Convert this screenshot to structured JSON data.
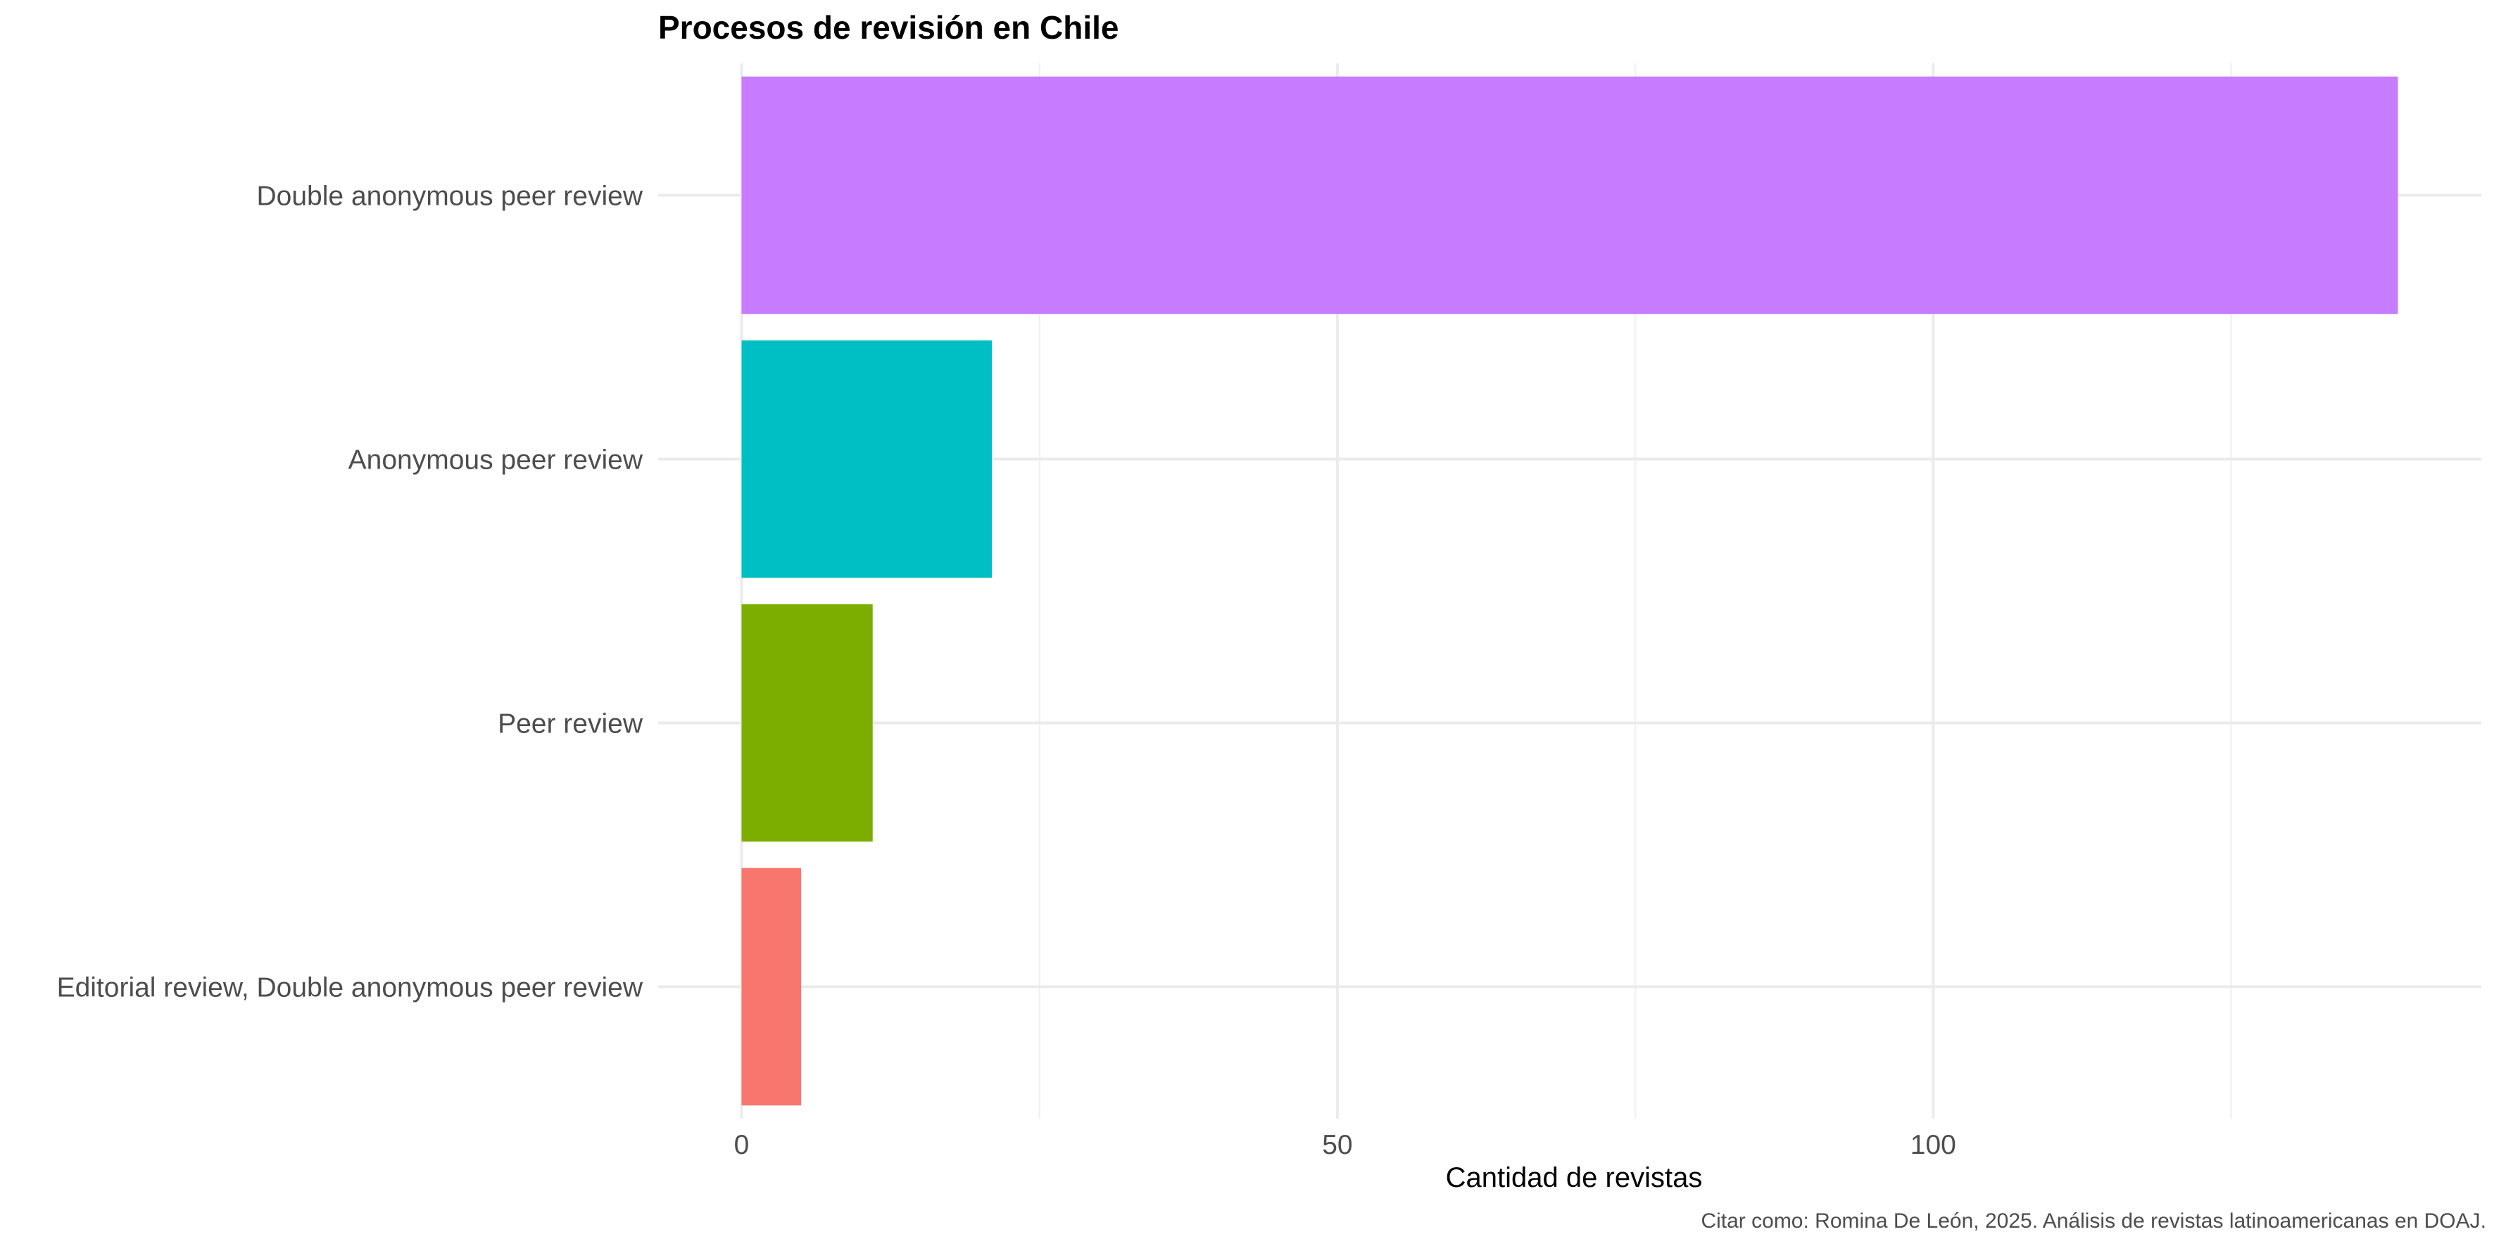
{
  "chart_data": {
    "type": "bar",
    "orientation": "horizontal",
    "title": "Procesos de revisión en Chile",
    "xlabel": "Cantidad de revistas",
    "ylabel": "",
    "caption": "Citar como: Romina De León, 2025. Análisis de revistas latinoamericanas en DOAJ.",
    "categories": [
      "Editorial review, Double anonymous peer review",
      "Peer review",
      "Anonymous peer review",
      "Double anonymous peer review"
    ],
    "values": [
      5,
      11,
      21,
      139
    ],
    "colors": [
      "#F8766D",
      "#7CAE00",
      "#00BFC4",
      "#C77CFF"
    ],
    "xlim": [
      -7,
      146
    ],
    "x_ticks": [
      0,
      50,
      100
    ],
    "x_tick_labels": [
      "0",
      "50",
      "100"
    ],
    "x_minor_ticks": [
      25,
      75,
      125
    ],
    "grid": true,
    "legend": "none"
  }
}
